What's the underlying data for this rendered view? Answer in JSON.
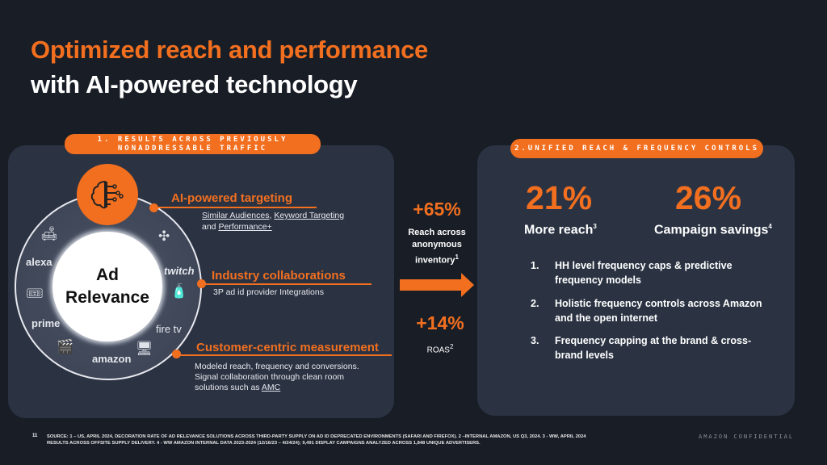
{
  "title": {
    "line1": "Optimized reach and performance",
    "line2": "with AI-powered technology"
  },
  "left": {
    "badge_line1": "1. RESULTS ACROSS PREVIOUSLY",
    "badge_line2": "NONADDRESSABLE TRAFFIC",
    "center_line1": "Ad",
    "center_line2": "Relevance",
    "logos": {
      "alexa": "alexa",
      "prime": "prime",
      "amazon": "amazon",
      "firetv": "fire tv",
      "twitch": "twitch"
    },
    "items": [
      {
        "heading": "AI-powered targeting",
        "link1": "Similar Audiences",
        "sep": ", ",
        "link2": "Keyword Targeting",
        "and": "and ",
        "link3": "Performance+"
      },
      {
        "heading": "Industry collaborations",
        "text": "3P ad id provider Integrations"
      },
      {
        "heading": "Customer-centric measurement",
        "line1": "Modeled reach, frequency and conversions.",
        "line2": "Signal collaboration through clean room",
        "line3": "solutions such as ",
        "link": "AMC"
      }
    ]
  },
  "middle": {
    "stat1": "+65%",
    "label1a": "Reach across",
    "label1b": "anonymous",
    "label1c": "inventory",
    "sup1": "1",
    "stat2": "+14%",
    "label2": "ROAS",
    "sup2": "2"
  },
  "right": {
    "badge": "2.UNIFIED REACH & FREQUENCY CONTROLS",
    "metric1": {
      "value": "21%",
      "label": "More reach",
      "sup": "3"
    },
    "metric2": {
      "value": "26%",
      "label": "Campaign savings",
      "sup": "4"
    },
    "list": [
      {
        "num": "1.",
        "text": "HH level frequency caps & predictive frequency models"
      },
      {
        "num": "2.",
        "text": "Holistic frequency controls across Amazon and the open internet"
      },
      {
        "num": "3.",
        "text": "Frequency capping at the brand & cross-brand levels"
      }
    ]
  },
  "footer": {
    "page": "11",
    "source": "SOURCE: 1 – US, APRIL 2024, DECORATION RATE OF AD RELEVANCE SOLUTIONS ACROSS THIRD-PARTY SUPPLY ON AD ID DEPRECATED ENVIRONMENTS (SAFARI AND FIREFOX). 2 –INTERNAL AMAZON, US Q3, 2024. 3 - WW, APRIL 2024 RESULTS ACROSS OFFSITE SUPPLY DELIVERY. 4 - WW AMAZON INTERNAL DATA 2023-2024 (12/16/23 – 4/24/24); 9,491 DISPLAY CAMPAIGNS ANALYZED ACROSS 1,848 UNIQUE ADVERTISERS.",
    "confidential": "AMAZON CONFIDENTIAL"
  },
  "colors": {
    "accent": "#f26f1f",
    "background": "#181d26",
    "panel": "#2b3343"
  }
}
